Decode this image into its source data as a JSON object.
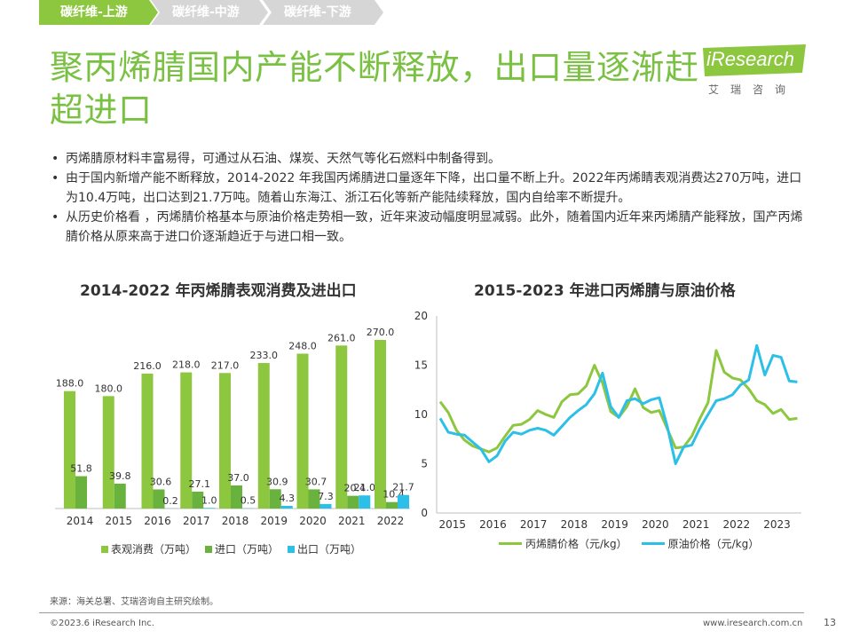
{
  "breadcrumb": {
    "items": [
      "碳纤维-上游",
      "碳纤维-中游",
      "碳纤维-下游"
    ]
  },
  "title": "聚丙烯腈国内产能不断释放，出口量逐渐赶超进口",
  "logo": {
    "text": "iResearch",
    "sub": "艾瑞咨询"
  },
  "bullets": [
    "丙烯腈原材料丰富易得，可通过从石油、煤炭、天然气等化石燃料中制备得到。",
    "由于国内新增产能不断释放，2014-2022 年我国丙烯腈进口量逐年下降，出口量不断上升。2022年丙烯睛表观消费达270万吨，进口为10.4万吨，出口达到21.7万吨。随着山东海江、浙江石化等新产能陆续释放，国内自给率不断提升。",
    "从历史价格看 ，丙烯腈价格基本与原油价格走势相一致，近年来波动幅度明显减弱。此外，随着国内近年来丙烯腈产能释放，国产丙烯腈价格从原来高于进口价逐渐趋近于与进口相一致。"
  ],
  "chart_data": [
    {
      "type": "bar",
      "title": "2014-2022 年丙烯腈表观消费及进出口",
      "categories": [
        "2014",
        "2015",
        "2016",
        "2017",
        "2018",
        "2019",
        "2020",
        "2021",
        "2022"
      ],
      "series": [
        {
          "name": "表观消费（万吨）",
          "color": "#8dc63f",
          "values": [
            188.0,
            180.0,
            216.0,
            218.0,
            217.0,
            233.0,
            248.0,
            261.0,
            270.0
          ]
        },
        {
          "name": "进口（万吨）",
          "color": "#6ab23e",
          "values": [
            51.8,
            39.8,
            30.6,
            27.1,
            37.0,
            30.9,
            30.7,
            20.4,
            10.4
          ]
        },
        {
          "name": "出口（万吨）",
          "color": "#2cbfe8",
          "values": [
            null,
            null,
            0.2,
            1.0,
            0.5,
            4.3,
            7.3,
            21.0,
            21.7
          ]
        }
      ],
      "labels": {
        "consumption": [
          "188.0",
          "180.0",
          "216.0",
          "218.0",
          "217.0",
          "233.0",
          "248.0",
          "261.0",
          "270.0"
        ],
        "import": [
          "51.8",
          "39.8",
          "30.6",
          "27.1",
          "37.0",
          "30.9",
          "30.7",
          "20.4",
          "10.4"
        ],
        "export": [
          "",
          "",
          "0.2",
          "1.0",
          "0.5",
          "4.3",
          "7.3",
          "21.0",
          "21.7"
        ]
      },
      "ylim": [
        0,
        290
      ]
    },
    {
      "type": "line",
      "title": "2015-2023 年进口丙烯腈与原油价格",
      "x_ticks": [
        "2015",
        "2016",
        "2017",
        "2018",
        "2019",
        "2020",
        "2021",
        "2022",
        "2023"
      ],
      "y_ticks": [
        "0",
        "5",
        "10",
        "15",
        "20"
      ],
      "ylim": [
        0,
        20
      ],
      "x_range": [
        2014.7,
        2023.6
      ],
      "series": [
        {
          "name": "丙烯腈价格（元/kg）",
          "color": "#8dc63f",
          "x": [
            2014.7,
            2014.9,
            2015.1,
            2015.3,
            2015.5,
            2015.7,
            2015.9,
            2016.1,
            2016.3,
            2016.5,
            2016.7,
            2016.9,
            2017.1,
            2017.3,
            2017.5,
            2017.7,
            2017.9,
            2018.1,
            2018.3,
            2018.5,
            2018.7,
            2018.9,
            2019.1,
            2019.3,
            2019.5,
            2019.7,
            2019.9,
            2020.1,
            2020.3,
            2020.5,
            2020.7,
            2020.9,
            2021.1,
            2021.3,
            2021.5,
            2021.7,
            2021.9,
            2022.1,
            2022.3,
            2022.5,
            2022.7,
            2022.9,
            2023.1,
            2023.3,
            2023.5
          ],
          "y": [
            11.3,
            10.2,
            8.4,
            7.4,
            6.8,
            6.5,
            6.2,
            6.6,
            7.8,
            8.9,
            9.0,
            9.5,
            10.4,
            10.0,
            9.7,
            11.3,
            12.0,
            12.1,
            12.9,
            15.0,
            13.2,
            10.3,
            9.7,
            10.8,
            12.6,
            10.7,
            10.2,
            10.4,
            8.5,
            6.6,
            6.7,
            7.8,
            9.6,
            11.2,
            16.5,
            14.3,
            13.7,
            13.5,
            12.6,
            11.4,
            11.0,
            10.1,
            10.5,
            9.5,
            9.6
          ]
        },
        {
          "name": "原油价格（元/kg）",
          "color": "#2cbfe8",
          "x": [
            2014.7,
            2014.9,
            2015.1,
            2015.3,
            2015.5,
            2015.7,
            2015.9,
            2016.1,
            2016.3,
            2016.5,
            2016.7,
            2016.9,
            2017.1,
            2017.3,
            2017.5,
            2017.7,
            2017.9,
            2018.1,
            2018.3,
            2018.5,
            2018.7,
            2018.9,
            2019.1,
            2019.3,
            2019.5,
            2019.7,
            2019.9,
            2020.1,
            2020.3,
            2020.5,
            2020.7,
            2020.9,
            2021.1,
            2021.3,
            2021.5,
            2021.7,
            2021.9,
            2022.1,
            2022.3,
            2022.5,
            2022.7,
            2022.9,
            2023.1,
            2023.3,
            2023.5
          ],
          "y": [
            9.6,
            8.2,
            8.0,
            7.9,
            7.2,
            6.5,
            5.2,
            5.8,
            7.3,
            8.2,
            8.0,
            8.4,
            8.6,
            8.4,
            7.9,
            8.8,
            9.7,
            10.4,
            11.0,
            12.1,
            14.2,
            10.8,
            9.7,
            11.4,
            11.6,
            11.1,
            11.5,
            11.7,
            8.7,
            5.0,
            6.7,
            6.9,
            8.6,
            10.0,
            11.4,
            11.6,
            12.0,
            13.0,
            13.5,
            17.0,
            14.0,
            16.0,
            15.8,
            13.4,
            13.3
          ]
        }
      ]
    }
  ],
  "legend_bar": [
    "表观消费（万吨）",
    "进口（万吨）",
    "出口（万吨）"
  ],
  "legend_line": [
    "丙烯腈价格（元/kg）",
    "原油价格（元/kg）"
  ],
  "source": "来源：海关总署、艾瑞咨询自主研究绘制。",
  "copyright": "©2023.6 iResearch Inc.",
  "website": "www.iresearch.com.cn",
  "page_number": "13"
}
